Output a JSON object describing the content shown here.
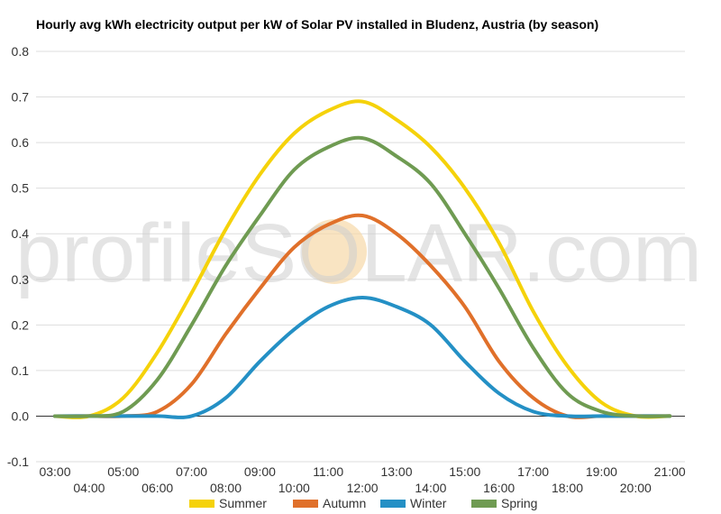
{
  "chart_data": {
    "type": "line",
    "title": "Hourly avg kWh electricity output per kW of Solar PV installed in Bludenz, Austria (by season)",
    "xlabel": "",
    "ylabel": "",
    "x": [
      "03:00",
      "04:00",
      "05:00",
      "06:00",
      "07:00",
      "08:00",
      "09:00",
      "10:00",
      "11:00",
      "12:00",
      "13:00",
      "14:00",
      "15:00",
      "16:00",
      "17:00",
      "18:00",
      "19:00",
      "20:00",
      "21:00"
    ],
    "ylim": [
      -0.1,
      0.8
    ],
    "yticks": [
      "0.8",
      "0.7",
      "0.6",
      "0.5",
      "0.4",
      "0.3",
      "0.2",
      "0.1",
      "0.0",
      "-0.1"
    ],
    "grid": true,
    "legend_position": "bottom",
    "watermark": "profileSOLAR.com",
    "series": [
      {
        "name": "Summer",
        "color": "#f5d20a",
        "values": [
          0.0,
          0.0,
          0.04,
          0.14,
          0.27,
          0.41,
          0.53,
          0.62,
          0.67,
          0.69,
          0.65,
          0.59,
          0.5,
          0.38,
          0.23,
          0.11,
          0.03,
          0.0,
          0.0
        ]
      },
      {
        "name": "Autumn",
        "color": "#e0702a",
        "values": [
          0.0,
          0.0,
          0.0,
          0.01,
          0.07,
          0.18,
          0.28,
          0.37,
          0.42,
          0.44,
          0.4,
          0.33,
          0.24,
          0.12,
          0.04,
          0.0,
          0.0,
          0.0,
          0.0
        ]
      },
      {
        "name": "Winter",
        "color": "#2490c5",
        "values": [
          0.0,
          0.0,
          0.0,
          0.0,
          0.0,
          0.04,
          0.12,
          0.19,
          0.24,
          0.26,
          0.24,
          0.2,
          0.12,
          0.05,
          0.01,
          0.0,
          0.0,
          0.0,
          0.0
        ]
      },
      {
        "name": "Spring",
        "color": "#6f9b52",
        "values": [
          0.0,
          0.0,
          0.01,
          0.08,
          0.2,
          0.33,
          0.44,
          0.54,
          0.59,
          0.61,
          0.57,
          0.51,
          0.4,
          0.28,
          0.15,
          0.05,
          0.01,
          0.0,
          0.0
        ]
      }
    ]
  }
}
